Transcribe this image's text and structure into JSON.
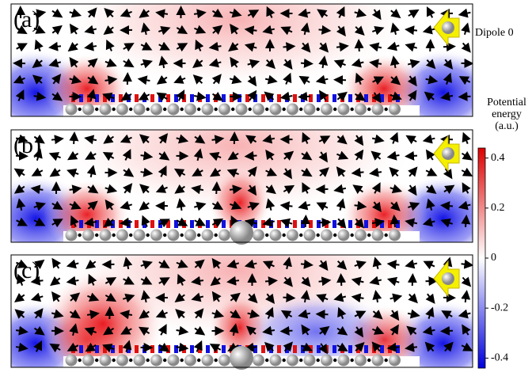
{
  "panels": [
    {
      "label": "(a)"
    },
    {
      "label": "(b)"
    },
    {
      "label": "(c)"
    }
  ],
  "legend": "Dipole 0",
  "colorbar": {
    "title": [
      "Potential",
      "energy",
      "(a.u.)"
    ],
    "lim": [
      -0.44,
      0.44
    ],
    "ticks": [
      0.4,
      0.2,
      0,
      -0.2,
      -0.4
    ]
  }
}
